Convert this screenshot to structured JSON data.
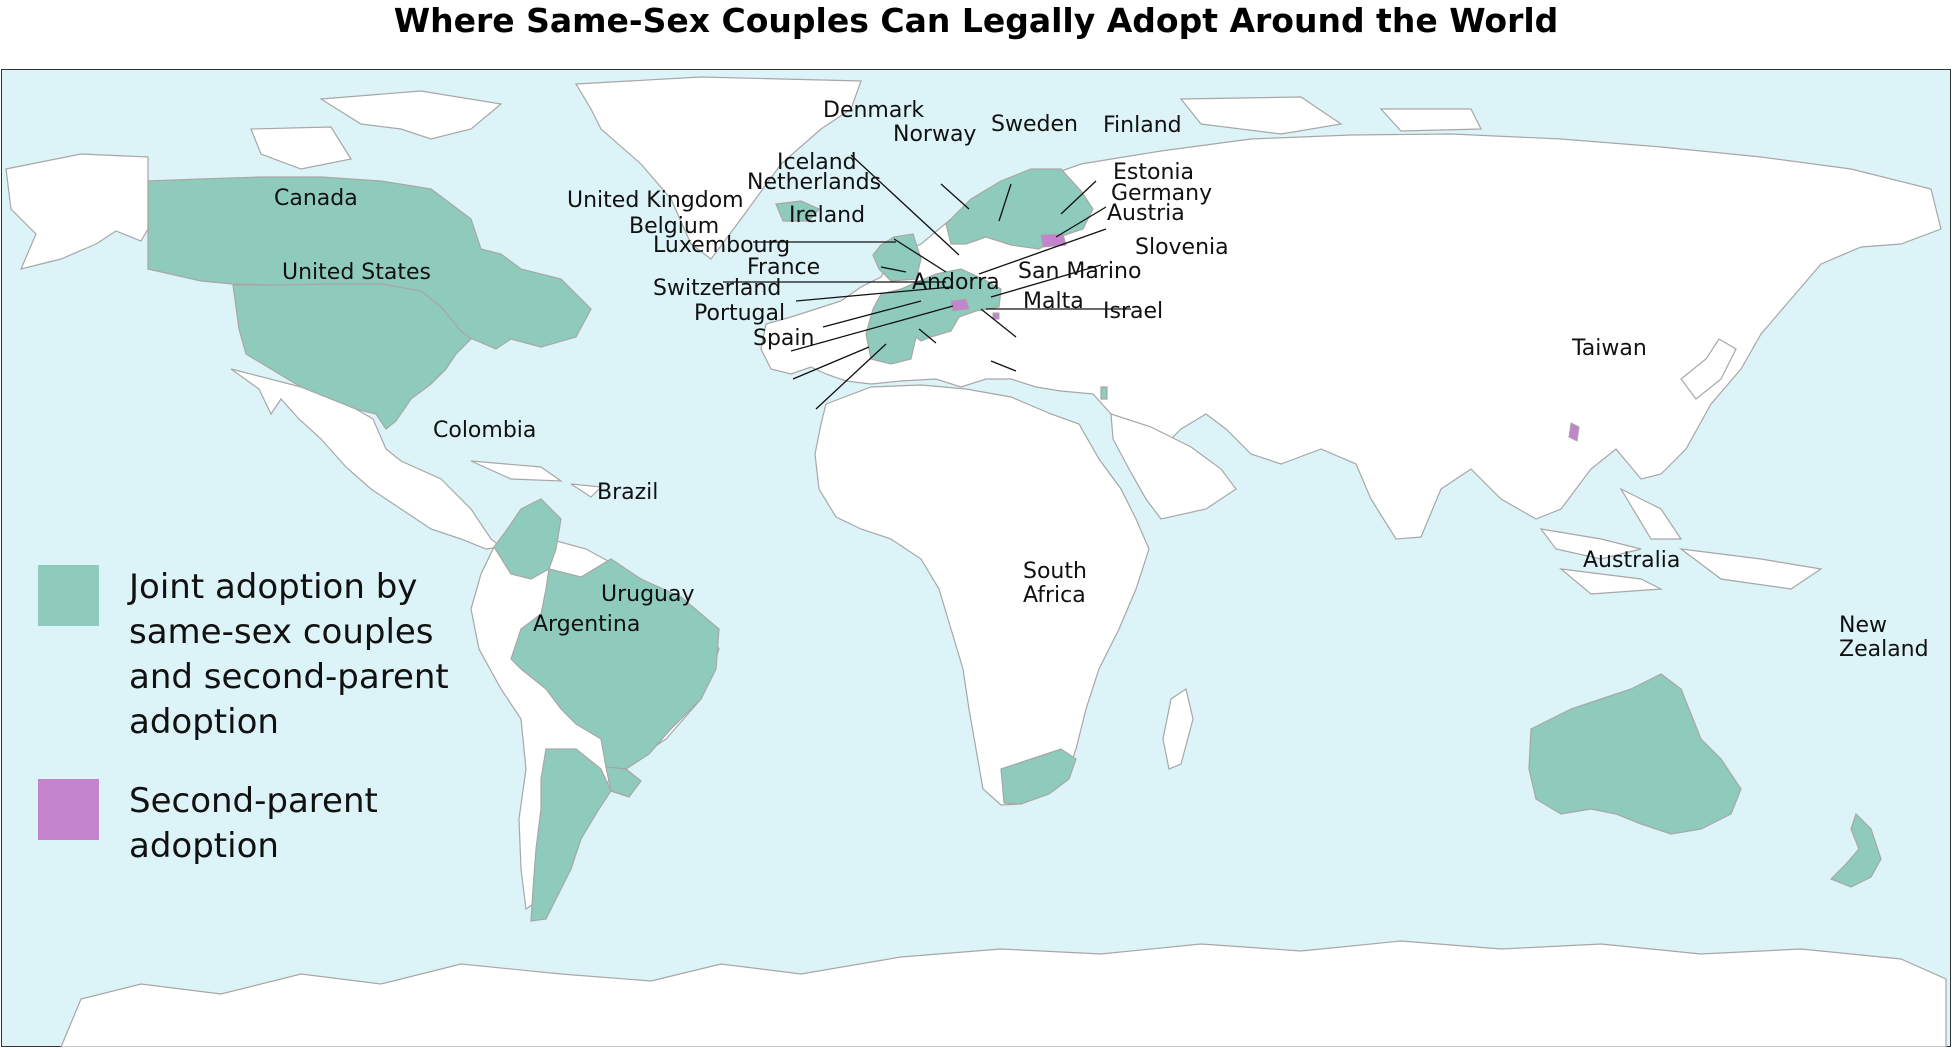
{
  "title": "Where Same-Sex Couples Can Legally Adopt Around the World",
  "colors": {
    "ocean": "#dcf3f8",
    "land": "#ffffff",
    "border": "#a7a7a7",
    "joint": "#8fcbbc",
    "second_parent": "#c383cd",
    "frame": "#333333"
  },
  "legend": [
    {
      "key": "joint",
      "label": "Joint adoption by\nsame-sex couples\nand second-parent\nadoption"
    },
    {
      "key": "second_parent",
      "label": "Second-parent\nadoption"
    }
  ],
  "countries": [
    {
      "name": "Canada",
      "status": "joint"
    },
    {
      "name": "United States",
      "status": "joint"
    },
    {
      "name": "Colombia",
      "status": "joint"
    },
    {
      "name": "Brazil",
      "status": "joint"
    },
    {
      "name": "Uruguay",
      "status": "joint"
    },
    {
      "name": "Argentina",
      "status": "joint"
    },
    {
      "name": "Iceland",
      "status": "joint"
    },
    {
      "name": "Denmark",
      "status": "joint"
    },
    {
      "name": "Norway",
      "status": "joint"
    },
    {
      "name": "Sweden",
      "status": "joint"
    },
    {
      "name": "Finland",
      "status": "joint"
    },
    {
      "name": "Estonia",
      "status": "second_parent"
    },
    {
      "name": "Netherlands",
      "status": "joint"
    },
    {
      "name": "Germany",
      "status": "joint"
    },
    {
      "name": "United Kingdom",
      "status": "joint"
    },
    {
      "name": "Ireland",
      "status": "joint"
    },
    {
      "name": "Austria",
      "status": "joint"
    },
    {
      "name": "Belgium",
      "status": "joint"
    },
    {
      "name": "Luxembourg",
      "status": "joint"
    },
    {
      "name": "Slovenia",
      "status": "joint"
    },
    {
      "name": "France",
      "status": "joint"
    },
    {
      "name": "San Marino",
      "status": "second_parent"
    },
    {
      "name": "Switzerland",
      "status": "second_parent"
    },
    {
      "name": "Andorra",
      "status": "joint"
    },
    {
      "name": "Portugal",
      "status": "joint"
    },
    {
      "name": "Malta",
      "status": "joint"
    },
    {
      "name": "Spain",
      "status": "joint"
    },
    {
      "name": "Israel",
      "status": "joint"
    },
    {
      "name": "Taiwan",
      "status": "second_parent"
    },
    {
      "name": "South Africa",
      "status": "joint"
    },
    {
      "name": "Australia",
      "status": "joint"
    },
    {
      "name": "New Zealand",
      "status": "joint"
    }
  ]
}
